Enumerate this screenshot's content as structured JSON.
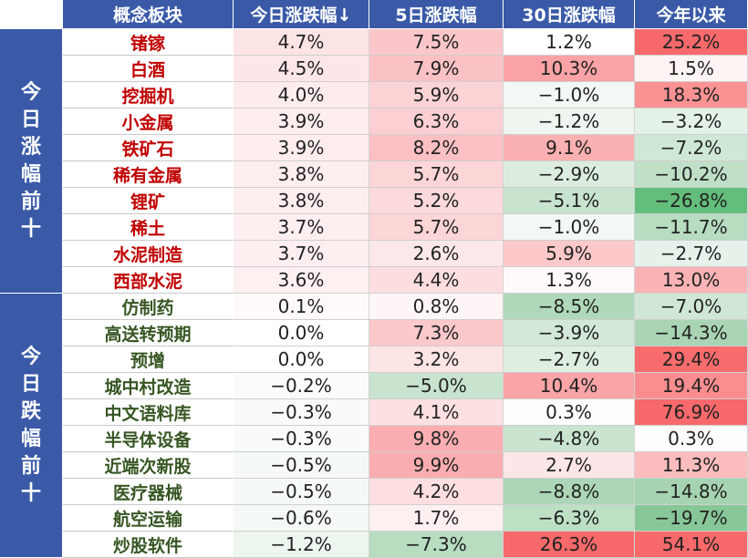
{
  "header": {
    "name": "概念板块",
    "cols": [
      "今日涨跌幅↓",
      "5日涨跌幅",
      "30日涨跌幅",
      "今年以来"
    ]
  },
  "groups": [
    {
      "label": "今日涨幅前十",
      "direction": "up"
    },
    {
      "label": "今日跌幅前十",
      "direction": "down"
    }
  ],
  "rows": [
    {
      "name": "锗镓",
      "group": 0,
      "values": [
        "4.7%",
        "7.5%",
        "1.2%",
        "25.2%"
      ],
      "bg": [
        "#fde4e5",
        "#fbc6c9",
        "#ffffff",
        "#f8696b"
      ]
    },
    {
      "name": "白酒",
      "group": 0,
      "values": [
        "4.5%",
        "7.9%",
        "10.3%",
        "1.5%"
      ],
      "bg": [
        "#fde6e7",
        "#fbc2c5",
        "#f9a3a6",
        "#fff4f4"
      ]
    },
    {
      "name": "挖掘机",
      "group": 0,
      "values": [
        "4.0%",
        "5.9%",
        "−1.0%",
        "18.3%"
      ],
      "bg": [
        "#fdecec",
        "#fcd3d5",
        "#f2f8f3",
        "#fa9294"
      ]
    },
    {
      "name": "小金属",
      "group": 0,
      "values": [
        "3.9%",
        "6.3%",
        "−1.2%",
        "−3.2%"
      ],
      "bg": [
        "#fdeded",
        "#fccfd2",
        "#eef6ef",
        "#e4f1e7"
      ]
    },
    {
      "name": "铁矿石",
      "group": 0,
      "values": [
        "3.9%",
        "8.2%",
        "9.1%",
        "−7.2%"
      ],
      "bg": [
        "#fdeded",
        "#fbc0c3",
        "#fbb0b2",
        "#cfe7d5"
      ]
    },
    {
      "name": "稀有金属",
      "group": 0,
      "values": [
        "3.8%",
        "5.7%",
        "−2.9%",
        "−10.2%"
      ],
      "bg": [
        "#fdeeee",
        "#fcd5d7",
        "#dcede0",
        "#bfe0c7"
      ]
    },
    {
      "name": "锂矿",
      "group": 0,
      "values": [
        "3.8%",
        "5.2%",
        "−5.1%",
        "−26.8%"
      ],
      "bg": [
        "#fdeeee",
        "#fcd9db",
        "#c8e3ce",
        "#63be7b"
      ]
    },
    {
      "name": "稀土",
      "group": 0,
      "values": [
        "3.7%",
        "5.7%",
        "−1.0%",
        "−11.7%"
      ],
      "bg": [
        "#fdefef",
        "#fcd5d7",
        "#f2f8f3",
        "#b7dcc0"
      ]
    },
    {
      "name": "水泥制造",
      "group": 0,
      "values": [
        "3.7%",
        "2.6%",
        "5.9%",
        "−2.7%"
      ],
      "bg": [
        "#fdefef",
        "#fde8e9",
        "#fcc8ca",
        "#e6f2e9"
      ]
    },
    {
      "name": "西部水泥",
      "group": 0,
      "values": [
        "3.6%",
        "4.4%",
        "1.3%",
        "13.0%"
      ],
      "bg": [
        "#fdf0f0",
        "#fddee0",
        "#fffafa",
        "#fbb3b5"
      ]
    },
    {
      "name": "仿制药",
      "group": 1,
      "values": [
        "0.1%",
        "0.8%",
        "−8.5%",
        "−7.0%"
      ],
      "bg": [
        "#fffafa",
        "#fef6f6",
        "#b0d8ba",
        "#d0e7d6"
      ]
    },
    {
      "name": "高送转预期",
      "group": 1,
      "values": [
        "0.0%",
        "7.3%",
        "−3.9%",
        "−14.3%"
      ],
      "bg": [
        "#ffffff",
        "#fbc8cb",
        "#d3e8d8",
        "#a9d5b5"
      ]
    },
    {
      "name": "预增",
      "group": 1,
      "values": [
        "0.0%",
        "3.2%",
        "−2.7%",
        "29.4%"
      ],
      "bg": [
        "#ffffff",
        "#fde4e5",
        "#deefe2",
        "#f86c6e"
      ]
    },
    {
      "name": "城中村改造",
      "group": 1,
      "values": [
        "−0.2%",
        "−5.0%",
        "10.4%",
        "19.4%"
      ],
      "bg": [
        "#f9fcfa",
        "#c8e3ce",
        "#f9a4a6",
        "#fa8d90"
      ]
    },
    {
      "name": "中文语料库",
      "group": 1,
      "values": [
        "−0.3%",
        "4.1%",
        "0.3%",
        "76.9%"
      ],
      "bg": [
        "#f8fbf9",
        "#fde0e2",
        "#fffcfc",
        "#f8696b"
      ]
    },
    {
      "name": "半导体设备",
      "group": 1,
      "values": [
        "−0.3%",
        "9.8%",
        "−4.8%",
        "0.3%"
      ],
      "bg": [
        "#f8fbf9",
        "#faaeb1",
        "#c9e4cf",
        "#fffcfc"
      ]
    },
    {
      "name": "近端次新股",
      "group": 1,
      "values": [
        "−0.5%",
        "9.9%",
        "2.7%",
        "11.3%"
      ],
      "bg": [
        "#f5faf6",
        "#faadb0",
        "#fde6e7",
        "#fbbcbe"
      ]
    },
    {
      "name": "医疗器械",
      "group": 1,
      "values": [
        "−0.5%",
        "4.2%",
        "−8.8%",
        "−14.8%"
      ],
      "bg": [
        "#f5faf6",
        "#fddfe1",
        "#add6b8",
        "#a6d4b2"
      ]
    },
    {
      "name": "航空运输",
      "group": 1,
      "values": [
        "−0.6%",
        "1.7%",
        "−6.3%",
        "−19.7%"
      ],
      "bg": [
        "#f4f9f5",
        "#fef0f0",
        "#bde0c5",
        "#87c797"
      ]
    },
    {
      "name": "炒股软件",
      "group": 1,
      "values": [
        "−1.2%",
        "−7.3%",
        "26.3%",
        "54.1%"
      ],
      "bg": [
        "#ecf5ee",
        "#b7dcc0",
        "#f8696b",
        "#f8696b"
      ]
    }
  ]
}
